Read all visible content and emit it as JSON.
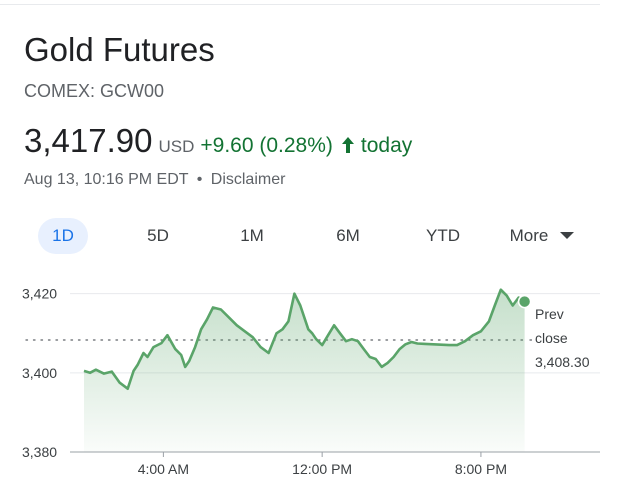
{
  "header": {
    "title": "Gold Futures",
    "subtitle": "COMEX: GCW00"
  },
  "quote": {
    "price": "3,417.90",
    "currency": "USD",
    "change": "+9.60 (0.28%)",
    "period": "today",
    "timestamp": "Aug 13, 10:16 PM EDT",
    "separator": "•",
    "disclaimer": "Disclaimer"
  },
  "tabs": [
    {
      "label": "1D",
      "active": true
    },
    {
      "label": "5D",
      "active": false
    },
    {
      "label": "1M",
      "active": false
    },
    {
      "label": "6M",
      "active": false
    },
    {
      "label": "YTD",
      "active": false
    },
    {
      "label": "More",
      "active": false
    }
  ],
  "colors": {
    "positive": "#137333",
    "line": "#5aa469",
    "active_tab_bg": "#e8f0fe",
    "active_tab_text": "#1a73e8"
  },
  "chart_data": {
    "type": "area",
    "yticks": [
      3420,
      3400,
      3380
    ],
    "ytick_labels": [
      "3,420",
      "3,400",
      "3,380"
    ],
    "ylim": [
      3380,
      3428
    ],
    "xlim": [
      0,
      26
    ],
    "xticks": [
      4,
      12,
      20
    ],
    "xtick_labels": [
      "4:00 AM",
      "12:00 PM",
      "8:00 PM"
    ],
    "prev_close": 3408.3,
    "prev_close_label": [
      "Prev",
      "close",
      "3,408.30"
    ],
    "grid": true,
    "series": [
      {
        "x": [
          0,
          0.3,
          0.6,
          1.0,
          1.4,
          1.8,
          2.2,
          2.5,
          2.7,
          3.0,
          3.2,
          3.5,
          3.9,
          4.2,
          4.6,
          4.9,
          5.1,
          5.3,
          5.6,
          5.9,
          6.2,
          6.5,
          6.9,
          7.3,
          7.7,
          8.1,
          8.5,
          8.9,
          9.3,
          9.7,
          10.0,
          10.3,
          10.6,
          10.9,
          11.1,
          11.3,
          11.5,
          11.7,
          12.0,
          12.3,
          12.6,
          12.9,
          13.2,
          13.5,
          13.8,
          14.1,
          14.4,
          14.7,
          15.0,
          15.3,
          15.6,
          15.9,
          16.2,
          16.5,
          16.8,
          17.2,
          17.6,
          18.0,
          18.4,
          18.8,
          19.2,
          19.6,
          20.0,
          20.4,
          20.7,
          21.0,
          21.3,
          21.6,
          21.9,
          22.2
        ],
        "y": [
          3400.5,
          3400.0,
          3400.8,
          3399.8,
          3400.3,
          3397.5,
          3396.0,
          3400.5,
          3402.0,
          3405.0,
          3404.0,
          3406.5,
          3407.5,
          3409.5,
          3406.0,
          3404.5,
          3401.5,
          3403.0,
          3406.5,
          3411.0,
          3413.5,
          3416.5,
          3416.0,
          3414.0,
          3412.0,
          3410.5,
          3409.0,
          3406.5,
          3405.0,
          3410.0,
          3411.0,
          3413.0,
          3420.0,
          3417.0,
          3414.0,
          3411.0,
          3410.0,
          3408.5,
          3407.0,
          3409.5,
          3412.0,
          3410.0,
          3408.0,
          3408.5,
          3408.0,
          3406.0,
          3404.0,
          3403.5,
          3401.5,
          3402.5,
          3404.0,
          3406.0,
          3407.2,
          3407.8,
          3407.4,
          3407.3,
          3407.2,
          3407.1,
          3407.0,
          3407.0,
          3408.0,
          3409.5,
          3410.5,
          3413.0,
          3417.0,
          3421.0,
          3419.5,
          3417.0,
          3419.0,
          3418.0
        ]
      }
    ],
    "last_point": {
      "x": 22.2,
      "y": 3418.0
    }
  }
}
